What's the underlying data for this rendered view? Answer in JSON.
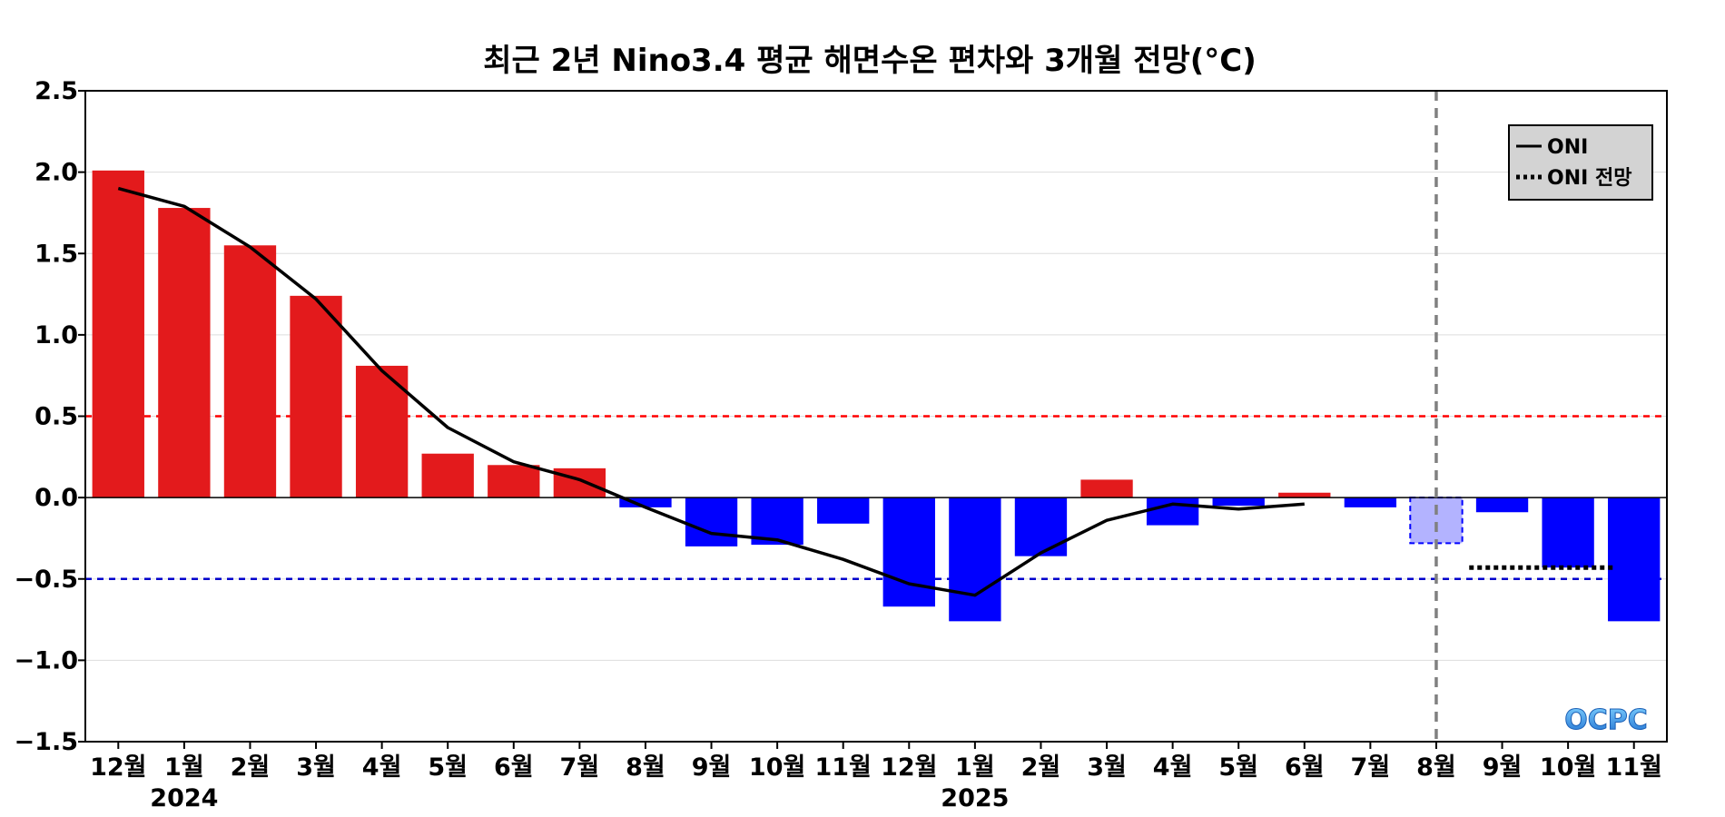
{
  "chart_data": {
    "type": "bar",
    "title": "최근 2년 Nino3.4 평균 해면수온 편차와 3개월 전망(°C)",
    "xlabel": "",
    "ylabel": "",
    "ylim": [
      -1.5,
      2.5
    ],
    "yticks": [
      "2.5",
      "2.0",
      "1.5",
      "1.0",
      "0.5",
      "0.0",
      "−0.5",
      "−1.0",
      "−1.5"
    ],
    "ytick_values": [
      2.5,
      2.0,
      1.5,
      1.0,
      0.5,
      0.0,
      -0.5,
      -1.0,
      -1.5
    ],
    "categories": [
      "12월",
      "1월",
      "2월",
      "3월",
      "4월",
      "5월",
      "6월",
      "7월",
      "8월",
      "9월",
      "10월",
      "11월",
      "12월",
      "1월",
      "2월",
      "3월",
      "4월",
      "5월",
      "6월",
      "7월",
      "8월",
      "9월",
      "10월",
      "11월"
    ],
    "year_labels": [
      {
        "text": "2024",
        "index": 1
      },
      {
        "text": "2025",
        "index": 13
      }
    ],
    "values": [
      2.01,
      1.78,
      1.55,
      1.24,
      0.81,
      0.27,
      0.2,
      0.18,
      -0.06,
      -0.3,
      -0.29,
      -0.16,
      -0.67,
      -0.76,
      -0.36,
      0.11,
      -0.17,
      -0.05,
      0.03,
      -0.06,
      -0.28,
      -0.09,
      -0.43,
      -0.76
    ],
    "highlighted_index": 20,
    "oni_series": {
      "name": "ONI",
      "start_index": 0,
      "values": [
        1.9,
        1.79,
        1.54,
        1.22,
        0.78,
        0.43,
        0.22,
        0.11,
        -0.06,
        -0.22,
        -0.26,
        -0.38,
        -0.53,
        -0.6,
        -0.34,
        -0.14,
        -0.04,
        -0.07,
        -0.04
      ]
    },
    "forecast": {
      "name": "ONI 전망",
      "x_range": [
        21.0,
        23.2
      ],
      "value": -0.43
    },
    "thresholds": [
      {
        "value": 0.5,
        "color": "#ff0000"
      },
      {
        "value": -0.5,
        "color": "#0000cc"
      }
    ],
    "current_month_index": 20,
    "legend": {
      "placement": "top-right",
      "entries": [
        {
          "label": "ONI",
          "style": "solid"
        },
        {
          "label": "ONI 전망",
          "style": "dotted"
        }
      ]
    },
    "grid": true,
    "colors": {
      "positive": "#e31a1c",
      "negative": "#0000ff",
      "highlight": "#b3b3ff",
      "line": "#000000",
      "vline": "#808080"
    },
    "logo": "OCPC"
  }
}
